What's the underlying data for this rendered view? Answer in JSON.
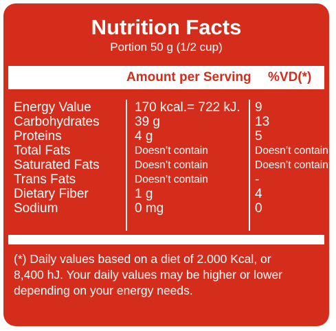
{
  "label": {
    "title": "Nutrition Facts",
    "portion": "Portion 50 g (1/2 cup)",
    "header": {
      "amount": "Amount per Serving",
      "vd": "%VD(*)"
    },
    "rows": [
      {
        "name": "Energy Value",
        "amount": "170 kcal.= 722 kJ.",
        "vd": "9"
      },
      {
        "name": "Carbohydrates",
        "amount": "39 g",
        "vd": "13"
      },
      {
        "name": "Proteins",
        "amount": "4 g",
        "vd": "5"
      },
      {
        "name": "Total Fats",
        "amount": "Doesn’t contain",
        "vd": "Doesn’t contain"
      },
      {
        "name": "Saturated Fats",
        "amount": "Doesn’t contain",
        "vd": "Doesn’t contain"
      },
      {
        "name": "Trans Fats",
        "amount": "Doesn’t contain",
        "vd": "-"
      },
      {
        "name": "Dietary Fiber",
        "amount": "1 g",
        "vd": "4"
      },
      {
        "name": "Sodium",
        "amount": "0 mg",
        "vd": "0"
      }
    ],
    "footnote": "(*) Daily values based on a diet of 2.000 Kcal, or 8,400 hJ. Your daily values may be higher or lower depending on your energy needs."
  },
  "colors": {
    "background": "#d42d1b",
    "text": "#ffffff",
    "band": "#ffffff",
    "header_text": "#d42d1b"
  }
}
